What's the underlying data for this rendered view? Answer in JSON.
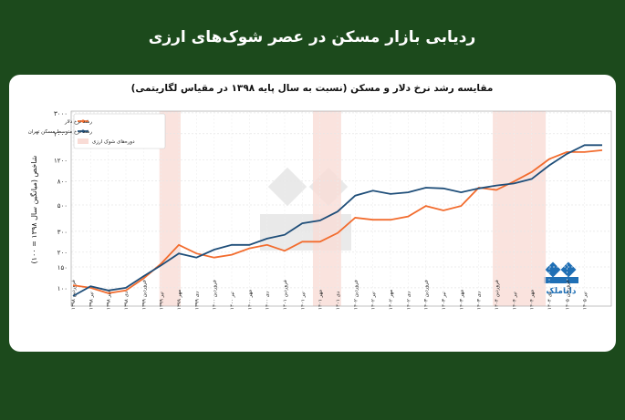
{
  "header": {
    "title": "ردیابی بازار مسکن در عصر شوک‌های ارزی"
  },
  "brand": "داناملک",
  "chart_data": {
    "type": "line",
    "title": "مقایسه رشد نرخ دلار و مسکن (نسبت به سال پایه ۱۳۹۸ در مقیاس لگاریتمی)",
    "y_label": "شاخص (میانگین سال ۱۳۹۸ = ۱۰۰)",
    "categories": [
      "فروردین ۱۳۹۸",
      "تیر ۱۳۹۸",
      "مهر ۱۳۹۸",
      "دی ۱۳۹۸",
      "فروردین ۱۳۹۹",
      "تیر ۱۳۹۹",
      "مهر ۱۳۹۹",
      "دی ۱۳۹۹",
      "فروردین ۱۴۰۰",
      "تیر ۱۴۰۰",
      "مهر ۱۴۰۰",
      "دی ۱۴۰۰",
      "فروردین ۱۴۰۱",
      "تیر ۱۴۰۱",
      "مهر ۱۴۰۱",
      "دی ۱۴۰۱",
      "فروردین ۱۴۰۲",
      "تیر ۱۴۰۲",
      "مهر ۱۴۰۲",
      "دی ۱۴۰۲",
      "فروردین ۱۴۰۳",
      "تیر ۱۴۰۳",
      "مهر ۱۴۰۳",
      "دی ۱۴۰۳",
      "فروردین ۱۴۰۴",
      "تیر ۱۴۰۴",
      "مهر ۱۴۰۴",
      "دی ۱۴۰۴",
      "فروردین ۱۴۰۵",
      "تیر ۱۴۰۵",
      null
    ],
    "series": [
      {
        "name": "رشد نرخ دلار",
        "color": "#f26c2e",
        "values": [
          105,
          100,
          90,
          95,
          120,
          160,
          230,
          195,
          180,
          190,
          215,
          230,
          205,
          245,
          245,
          290,
          390,
          375,
          375,
          400,
          490,
          450,
          490,
          700,
          670,
          790,
          950,
          1220,
          1400,
          1400,
          1450
        ]
      },
      {
        "name": "رشد نرخ متوسط مسکن تهران",
        "color": "#1f4e79",
        "values": [
          85,
          103,
          95,
          100,
          125,
          155,
          195,
          180,
          210,
          230,
          230,
          260,
          280,
          350,
          370,
          440,
          600,
          660,
          620,
          640,
          700,
          690,
          640,
          690,
          730,
          760,
          830,
          1080,
          1350,
          1600,
          1600
        ]
      }
    ],
    "shock_label": "دوره‌های شوک ارزی",
    "shock_color": "#f9dcd6",
    "shocks": [
      [
        4.9,
        6.1
      ],
      [
        13.6,
        15.2
      ],
      [
        23.8,
        26.8
      ]
    ],
    "log_scale": true,
    "ylim": [
      70,
      3100
    ],
    "yticks": [
      {
        "value": 100,
        "label": "۱۰۰"
      },
      {
        "value": 150,
        "label": "۱۵۰"
      },
      {
        "value": 200,
        "label": "۲۰۰"
      },
      {
        "value": 300,
        "label": "۳۰۰"
      },
      {
        "value": 500,
        "label": "۵۰۰"
      },
      {
        "value": 800,
        "label": "۸۰۰"
      },
      {
        "value": 1200,
        "label": "۱۲۰۰"
      },
      {
        "value": 2000,
        "label": "۲۰۰۰"
      },
      {
        "value": 3000,
        "label": "۳۰۰۰"
      }
    ],
    "grid": true,
    "legend": "upper left"
  }
}
